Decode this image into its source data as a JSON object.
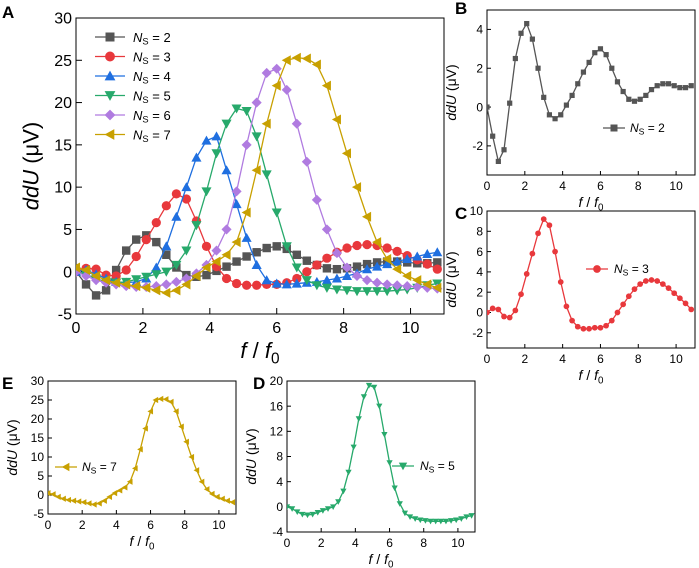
{
  "chart_data": [
    {
      "panel": "A",
      "type": "line",
      "xlabel_main": "f",
      "xlabel_sub": "f",
      "xlabel_sep": " / ",
      "xlabel_subscript": "0",
      "ylabel_italic": "ddU",
      "ylabel_unit": " (μV)",
      "xlim": [
        0,
        11
      ],
      "ylim": [
        -5,
        30
      ],
      "xticks": [
        0,
        2,
        4,
        6,
        8,
        10
      ],
      "yticks": [
        -5,
        0,
        5,
        10,
        15,
        20,
        25,
        30
      ],
      "legend_position": "top-left",
      "x": [
        0,
        0.3,
        0.6,
        0.9,
        1.2,
        1.5,
        1.8,
        2.1,
        2.4,
        2.7,
        3.0,
        3.3,
        3.6,
        3.9,
        4.2,
        4.5,
        4.8,
        5.1,
        5.4,
        5.7,
        6.0,
        6.3,
        6.6,
        6.9,
        7.2,
        7.5,
        7.8,
        8.1,
        8.4,
        8.7,
        9.0,
        9.3,
        9.6,
        9.9,
        10.2,
        10.5,
        10.8
      ],
      "series": [
        {
          "name": "NS = 2",
          "ns": "2",
          "color": "#555555",
          "marker": "square",
          "values": [
            0,
            -1.5,
            -2.8,
            -2.2,
            0.2,
            2.5,
            3.8,
            4.3,
            3.5,
            2.0,
            0.5,
            -0.4,
            -0.6,
            -0.4,
            0.1,
            0.6,
            1.2,
            1.8,
            2.3,
            2.8,
            3.0,
            2.7,
            2.0,
            1.3,
            0.8,
            0.4,
            0.3,
            0.4,
            0.6,
            0.9,
            1.1,
            1.2,
            1.2,
            1.1,
            1.0,
            1.0,
            1.1
          ]
        },
        {
          "name": "NS = 3",
          "ns": "3",
          "color": "#e8383c",
          "marker": "circle",
          "values": [
            0,
            0.4,
            0.3,
            -0.4,
            -0.5,
            0.2,
            1.8,
            3.8,
            5.8,
            7.8,
            9.2,
            8.6,
            6.0,
            3.0,
            0.6,
            -0.8,
            -1.4,
            -1.6,
            -1.6,
            -1.5,
            -1.5,
            -1.3,
            -0.8,
            0.0,
            0.8,
            1.6,
            2.3,
            2.8,
            3.1,
            3.2,
            3.1,
            2.8,
            2.4,
            1.9,
            1.4,
            0.9,
            0.3
          ]
        },
        {
          "name": "NS = 4",
          "ns": "4",
          "color": "#1f6fe0",
          "marker": "triangle-up",
          "values": [
            0,
            0.2,
            -0.3,
            -0.8,
            -1.2,
            -1.3,
            -1.2,
            -0.8,
            0.5,
            3.0,
            6.5,
            10.0,
            13.5,
            15.5,
            16.0,
            12.0,
            8.0,
            4.0,
            0.8,
            -1.0,
            -1.4,
            -1.5,
            -1.4,
            -1.3,
            -1.2,
            -1.0,
            -0.8,
            -0.5,
            -0.2,
            0.3,
            0.6,
            0.9,
            1.2,
            1.5,
            1.8,
            2.1,
            2.3
          ]
        },
        {
          "name": "NS = 5",
          "ns": "5",
          "color": "#27a96b",
          "marker": "triangle-down",
          "values": [
            0,
            -0.3,
            -0.8,
            -1.2,
            -1.3,
            -1.2,
            -0.9,
            -0.6,
            -0.3,
            0.0,
            0.8,
            2.5,
            5.5,
            9.5,
            14.0,
            17.5,
            19.3,
            19.0,
            16.0,
            11.5,
            7.0,
            3.0,
            0.5,
            -1.0,
            -1.6,
            -1.9,
            -2.1,
            -2.2,
            -2.3,
            -2.3,
            -2.3,
            -2.3,
            -2.2,
            -2.1,
            -1.9,
            -1.6,
            -1.4
          ]
        },
        {
          "name": "NS = 6",
          "ns": "6",
          "color": "#b07be0",
          "marker": "diamond",
          "values": [
            0,
            -0.5,
            -1.0,
            -1.3,
            -1.5,
            -1.7,
            -1.8,
            -1.8,
            -1.7,
            -1.5,
            -1.2,
            -0.8,
            -0.2,
            0.8,
            2.5,
            5.0,
            9.5,
            15.0,
            20.0,
            23.5,
            24.0,
            21.5,
            17.5,
            13.0,
            8.5,
            5.0,
            2.2,
            0.5,
            -0.5,
            -1.0,
            -1.3,
            -1.5,
            -1.6,
            -1.7,
            -1.8,
            -1.9,
            -2.0
          ]
        },
        {
          "name": "NS = 7",
          "ns": "7",
          "color": "#c8a000",
          "marker": "triangle-left",
          "values": [
            0.5,
            0.2,
            -0.5,
            -1.0,
            -1.3,
            -1.5,
            -1.7,
            -1.9,
            -2.2,
            -2.5,
            -2.2,
            -1.5,
            -0.5,
            0.5,
            1.2,
            2.0,
            3.5,
            7.0,
            12.0,
            17.5,
            22.0,
            25.0,
            25.3,
            25.2,
            24.5,
            22.0,
            18.0,
            14.0,
            10.0,
            6.5,
            3.5,
            1.5,
            0.3,
            -0.5,
            -1.0,
            -1.5,
            -1.9
          ]
        }
      ]
    },
    {
      "panel": "B",
      "type": "line",
      "xlim": [
        0,
        11
      ],
      "ylim": [
        -3.5,
        5
      ],
      "xticks": [
        0,
        2,
        4,
        6,
        8,
        10
      ],
      "yticks": [
        -2,
        0,
        2,
        4
      ],
      "legend_position": "bottom-right",
      "series_index": 0
    },
    {
      "panel": "C",
      "type": "line",
      "xlim": [
        0,
        11
      ],
      "ylim": [
        -3.5,
        10
      ],
      "xticks": [
        0,
        2,
        4,
        6,
        8,
        10
      ],
      "yticks": [
        -2,
        0,
        2,
        4,
        6,
        8,
        10
      ],
      "legend_position": "top-right",
      "series_index": 1
    },
    {
      "panel": "E",
      "type": "line",
      "xlim": [
        0,
        11
      ],
      "ylim": [
        -5,
        30
      ],
      "xticks": [
        0,
        2,
        4,
        6,
        8,
        10
      ],
      "yticks": [
        -5,
        0,
        5,
        10,
        15,
        20,
        25,
        30
      ],
      "legend_position": "middle-left",
      "series_index": 5
    },
    {
      "panel": "D",
      "type": "line",
      "xlim": [
        0,
        11
      ],
      "ylim": [
        -4,
        20
      ],
      "xticks": [
        0,
        2,
        4,
        6,
        8,
        10
      ],
      "yticks": [
        -4,
        0,
        4,
        8,
        12,
        16,
        20
      ],
      "legend_position": "middle-right",
      "series_index": 3
    }
  ]
}
